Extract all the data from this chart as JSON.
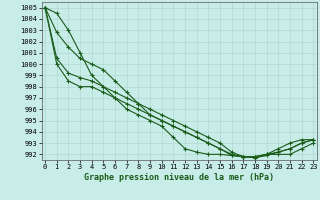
{
  "title": "Graphe pression niveau de la mer (hPa)",
  "hours": [
    0,
    1,
    2,
    3,
    4,
    5,
    6,
    7,
    8,
    9,
    10,
    11,
    12,
    13,
    14,
    15,
    16,
    17,
    18,
    19,
    20,
    21,
    22,
    23
  ],
  "ylim": [
    991.5,
    1005.5
  ],
  "xlim": [
    -0.3,
    23.3
  ],
  "yticks": [
    992,
    993,
    994,
    995,
    996,
    997,
    998,
    999,
    1000,
    1001,
    1002,
    1003,
    1004,
    1005
  ],
  "bg_color": "#c8ece8",
  "grid_color": "#b0d8d0",
  "line_color": "#1a5c1a",
  "series": [
    [
      1005,
      1004.5,
      1003,
      1001,
      999,
      998,
      997,
      996,
      995.5,
      995,
      994.5,
      993.5,
      992.5,
      992.2,
      992,
      992,
      991.9,
      991.8,
      991.8,
      992,
      992,
      992,
      992.5,
      993
    ],
    [
      1005,
      1002.8,
      1001.5,
      1000.5,
      1000,
      999.5,
      998.5,
      997.5,
      996.5,
      995.5,
      995,
      994.5,
      994,
      993.5,
      993,
      992.5,
      992,
      991.8,
      991.8,
      992,
      992.5,
      993,
      993.3,
      993.3
    ],
    [
      1005,
      1000.5,
      999.2,
      998.8,
      998.5,
      998.0,
      997.5,
      997.0,
      996.5,
      996.0,
      995.5,
      995.0,
      994.5,
      994.0,
      993.5,
      993.0,
      992.2,
      991.8,
      991.7,
      992.0,
      992.2,
      992.5,
      993.0,
      993.3
    ],
    [
      1005,
      1000.0,
      998.5,
      998.0,
      998.0,
      997.5,
      997.0,
      996.5,
      996.0,
      995.5,
      995.0,
      994.5,
      994.0,
      993.5,
      993.0,
      992.5,
      991.9,
      991.8,
      991.7,
      991.9,
      992.2,
      992.5,
      993.0,
      993.3
    ]
  ]
}
